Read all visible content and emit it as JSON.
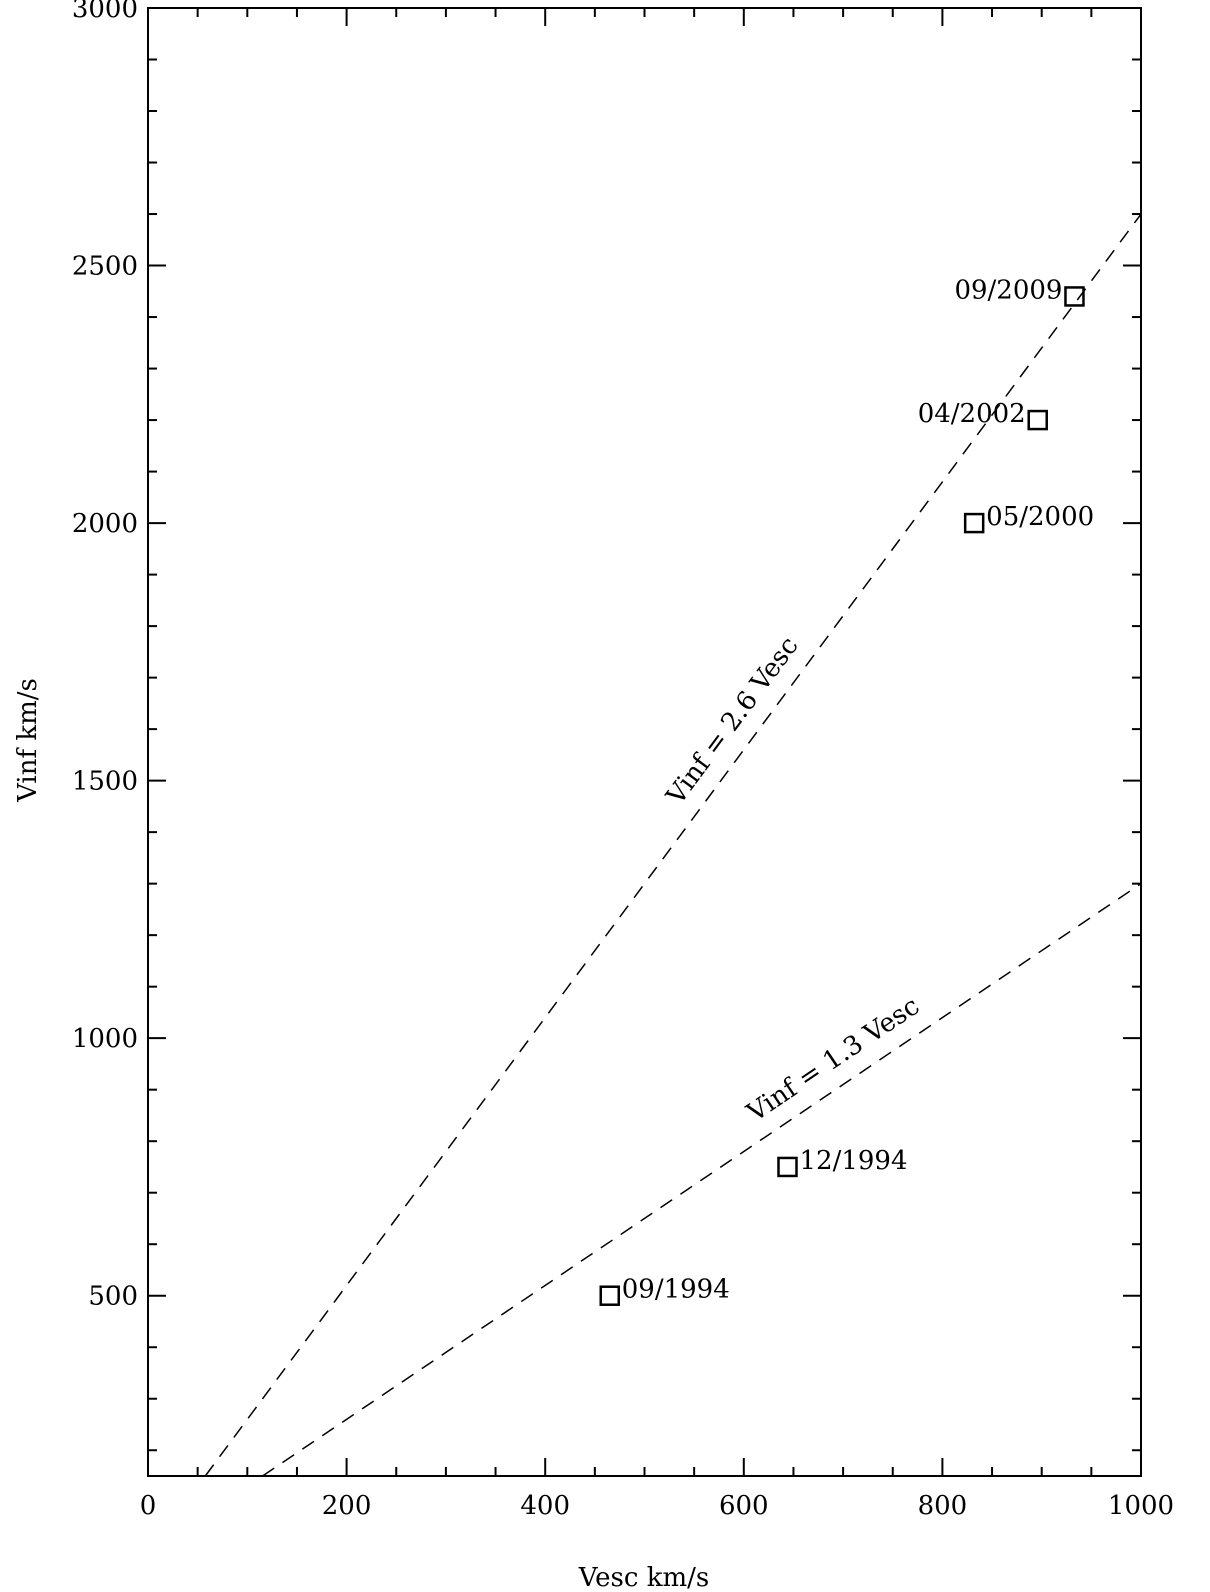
{
  "chart_data": {
    "type": "scatter",
    "xlabel": "Vesc km/s",
    "ylabel": "Vinf km/s",
    "xlim": [
      0,
      1000
    ],
    "ylim": [
      150,
      3000
    ],
    "x_ticks": [
      {
        "value": 0,
        "label": "0"
      },
      {
        "value": 200,
        "label": "200"
      },
      {
        "value": 400,
        "label": "400"
      },
      {
        "value": 600,
        "label": "600"
      },
      {
        "value": 800,
        "label": "800"
      },
      {
        "value": 1000,
        "label": "1000"
      }
    ],
    "x_minor_step": 50,
    "y_ticks": [
      {
        "value": 500,
        "label": "500"
      },
      {
        "value": 1000,
        "label": "1000"
      },
      {
        "value": 1500,
        "label": "1500"
      },
      {
        "value": 2000,
        "label": "2000"
      },
      {
        "value": 2500,
        "label": "2500"
      },
      {
        "value": 3000,
        "label": "3000"
      }
    ],
    "y_minor_step": 100,
    "points": [
      {
        "label": "09/1994",
        "x": 465,
        "y": 500,
        "label_side": "right"
      },
      {
        "label": "12/1994",
        "x": 644,
        "y": 750,
        "label_side": "right"
      },
      {
        "label": "05/2000",
        "x": 832,
        "y": 2000,
        "label_side": "right"
      },
      {
        "label": "04/2002",
        "x": 896,
        "y": 2200,
        "label_side": "left"
      },
      {
        "label": "09/2009",
        "x": 933,
        "y": 2440,
        "label_side": "left"
      }
    ],
    "lines": [
      {
        "label": "Vinf = 2.6 Vesc",
        "slope": 2.6,
        "style": "dashed",
        "label_at_x": 610
      },
      {
        "label": "Vinf = 1.3 Vesc",
        "slope": 1.3,
        "style": "dashed",
        "label_at_x": 705
      }
    ],
    "grid": false
  }
}
